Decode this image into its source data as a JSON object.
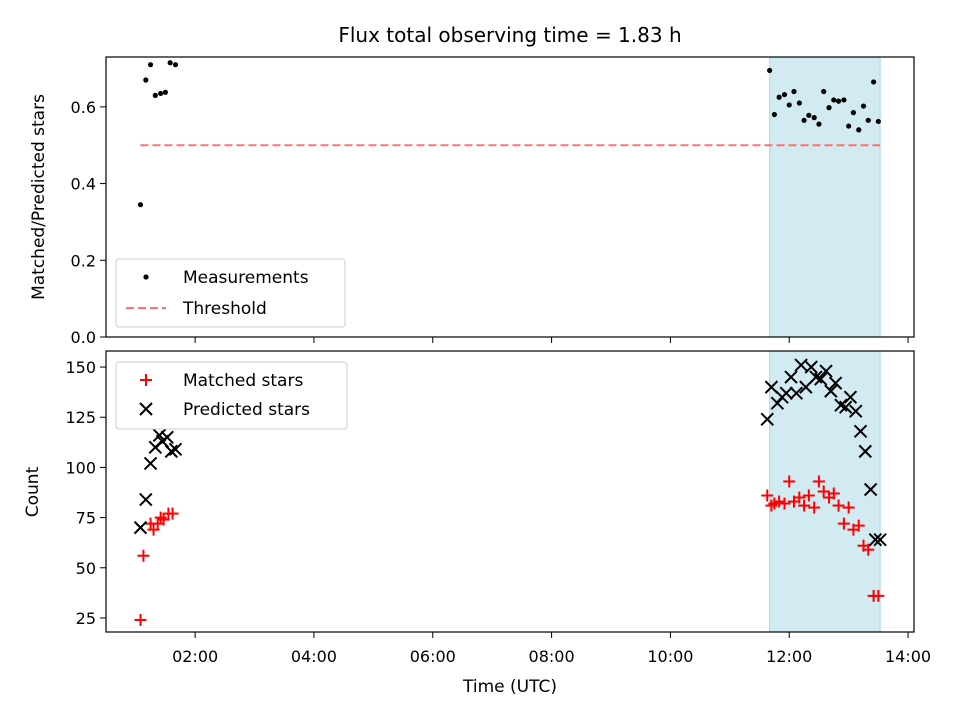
{
  "title": "Flux total observing time = 1.83 h",
  "colors": {
    "measurement": "#000000",
    "threshold": "#ff7070",
    "matched": "#ff0000",
    "predicted": "#000000",
    "shade": "#add8e6"
  },
  "chart_data": [
    {
      "type": "scatter",
      "name": "ratio-panel",
      "ylabel": "Matched/Predicted stars",
      "xlabel": "",
      "xlim": [
        0.5,
        14.1
      ],
      "ylim": [
        0.0,
        0.73
      ],
      "yticks": [
        0.0,
        0.2,
        0.4,
        0.6
      ],
      "ytick_labels": [
        "0.0",
        "0.2",
        "0.4",
        "0.6"
      ],
      "grid": false,
      "legend": {
        "placement": "lower-left",
        "entries": [
          "Measurements",
          "Threshold"
        ]
      },
      "shaded_span": {
        "x": [
          11.67,
          13.53
        ]
      },
      "threshold": {
        "name": "Threshold",
        "y": 0.5,
        "x": [
          1.08,
          13.53
        ]
      },
      "series": [
        {
          "name": "Measurements",
          "x": [
            1.08,
            1.17,
            1.25,
            1.33,
            1.42,
            1.5,
            1.58,
            1.67,
            11.67,
            11.75,
            11.83,
            11.92,
            12.0,
            12.08,
            12.17,
            12.25,
            12.33,
            12.42,
            12.5,
            12.58,
            12.67,
            12.75,
            12.83,
            12.92,
            13.0,
            13.08,
            13.17,
            13.25,
            13.33,
            13.42,
            13.5
          ],
          "y": [
            0.345,
            0.67,
            0.71,
            0.63,
            0.635,
            0.638,
            0.715,
            0.71,
            0.695,
            0.58,
            0.625,
            0.632,
            0.605,
            0.64,
            0.61,
            0.565,
            0.578,
            0.572,
            0.555,
            0.64,
            0.598,
            0.618,
            0.615,
            0.618,
            0.55,
            0.585,
            0.54,
            0.602,
            0.565,
            0.665,
            0.562
          ]
        }
      ]
    },
    {
      "type": "scatter",
      "name": "count-panel",
      "ylabel": "Count",
      "xlabel": "Time (UTC)",
      "xlim": [
        0.5,
        14.1
      ],
      "ylim": [
        18,
        158
      ],
      "yticks": [
        25,
        50,
        75,
        100,
        125,
        150
      ],
      "ytick_labels": [
        "25",
        "50",
        "75",
        "100",
        "125",
        "150"
      ],
      "xticks": [
        2,
        4,
        6,
        8,
        10,
        12,
        14
      ],
      "xtick_labels": [
        "02:00",
        "04:00",
        "06:00",
        "08:00",
        "10:00",
        "12:00",
        "14:00"
      ],
      "grid": false,
      "legend": {
        "placement": "upper-left",
        "entries": [
          "Matched stars",
          "Predicted stars"
        ]
      },
      "shaded_span": {
        "x": [
          11.67,
          13.53
        ]
      },
      "series": [
        {
          "name": "Matched stars",
          "marker": "+",
          "x": [
            1.08,
            1.13,
            1.25,
            1.3,
            1.37,
            1.42,
            1.47,
            1.55,
            1.62,
            11.63,
            11.7,
            11.75,
            11.83,
            11.92,
            12.0,
            12.08,
            12.17,
            12.25,
            12.33,
            12.42,
            12.5,
            12.58,
            12.67,
            12.75,
            12.83,
            12.92,
            13.0,
            13.08,
            13.17,
            13.25,
            13.33,
            13.42,
            13.5
          ],
          "y": [
            24,
            56,
            72,
            69,
            72,
            75,
            74,
            77,
            77,
            86,
            81,
            82,
            83,
            82,
            93,
            83,
            85,
            81,
            86,
            80,
            93,
            88,
            85,
            87,
            81,
            72,
            80,
            69,
            71,
            61,
            59,
            36,
            36
          ]
        },
        {
          "name": "Predicted stars",
          "marker": "x",
          "x": [
            1.08,
            1.17,
            1.25,
            1.33,
            1.4,
            1.45,
            1.53,
            1.6,
            1.67,
            11.63,
            11.7,
            11.8,
            11.88,
            11.95,
            12.03,
            12.12,
            12.2,
            12.28,
            12.37,
            12.45,
            12.53,
            12.62,
            12.7,
            12.78,
            12.87,
            12.95,
            13.03,
            13.12,
            13.2,
            13.28,
            13.37,
            13.45,
            13.53
          ],
          "y": [
            70,
            84,
            102,
            110,
            116,
            113,
            115,
            108,
            109,
            124,
            140,
            132,
            135,
            137,
            145,
            137,
            151,
            140,
            150,
            145,
            144,
            148,
            138,
            142,
            131,
            130,
            135,
            128,
            118,
            108,
            89,
            64,
            64
          ]
        }
      ]
    }
  ]
}
